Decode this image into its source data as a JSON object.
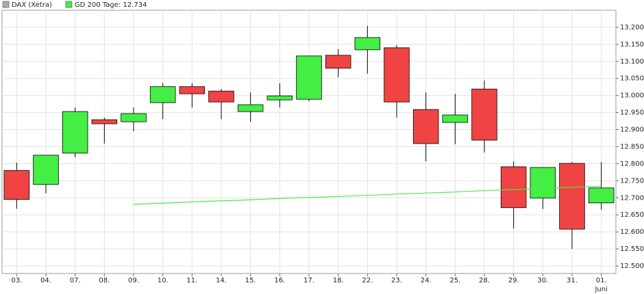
{
  "chart_data": {
    "type": "candlestick",
    "categories": [
      "03.",
      "04.",
      "07.",
      "08.",
      "09.",
      "10.",
      "11.",
      "14.",
      "15.",
      "16.",
      "17.",
      "18.",
      "22.",
      "23.",
      "24.",
      "25.",
      "28.",
      "29.",
      "30.",
      "31.",
      "01."
    ],
    "x_sublabels": [
      null,
      null,
      null,
      null,
      null,
      null,
      null,
      null,
      null,
      null,
      null,
      null,
      null,
      null,
      null,
      null,
      null,
      null,
      null,
      null,
      "Juni"
    ],
    "series": [
      {
        "name": "DAX (Xetra)",
        "color": "#aaaaaa",
        "up_color": "#44ee44",
        "down_color": "#f04444",
        "open": [
          12780,
          12739,
          12831,
          12929,
          12923,
          12979,
          13026,
          13013,
          12953,
          12987,
          12989,
          13118,
          13134,
          13140,
          12959,
          12921,
          13019,
          12791,
          12699,
          12801,
          12685
        ],
        "high": [
          12803,
          12825,
          12965,
          12935,
          12965,
          13036,
          13036,
          13019,
          13009,
          13036,
          13116,
          13136,
          13204,
          13148,
          13009,
          13005,
          13044,
          12807,
          12789,
          12805,
          12805
        ],
        "low": [
          12668,
          12713,
          12819,
          12859,
          12895,
          12931,
          12965,
          12931,
          12923,
          12965,
          12983,
          13054,
          13064,
          12935,
          12807,
          12857,
          12833,
          12610,
          12667,
          12550,
          12665
        ],
        "close": [
          12695,
          12825,
          12953,
          12917,
          12947,
          13026,
          13005,
          12981,
          12973,
          12999,
          13116,
          13080,
          13170,
          12981,
          12859,
          12943,
          12869,
          12671,
          12789,
          12608,
          12729
        ]
      },
      {
        "name": "GD 200 Tage: 12.734",
        "type": "line",
        "color": "#44ee44",
        "values": [
          null,
          null,
          null,
          null,
          12681,
          12684,
          12688,
          12691,
          12694,
          12698,
          12701,
          12704,
          12707,
          12711,
          12714,
          12717,
          12721,
          12724,
          12727,
          12731,
          12734
        ]
      }
    ],
    "ylim": [
      12478,
      13250
    ],
    "yticks": [
      {
        "value": 12500,
        "label": "12.500"
      },
      {
        "value": 12550,
        "label": "12.550"
      },
      {
        "value": 12600,
        "label": "12.600"
      },
      {
        "value": 12650,
        "label": "12.650"
      },
      {
        "value": 12700,
        "label": "12.700"
      },
      {
        "value": 12750,
        "label": "12.750"
      },
      {
        "value": 12800,
        "label": "12.800"
      },
      {
        "value": 12850,
        "label": "12.850"
      },
      {
        "value": 12900,
        "label": "12.900"
      },
      {
        "value": 12950,
        "label": "12.950"
      },
      {
        "value": 13000,
        "label": "13.000"
      },
      {
        "value": 13050,
        "label": "13.050"
      },
      {
        "value": 13100,
        "label": "13.100"
      },
      {
        "value": 13150,
        "label": "13.150"
      },
      {
        "value": 13200,
        "label": "13.200"
      }
    ],
    "grid": true
  }
}
